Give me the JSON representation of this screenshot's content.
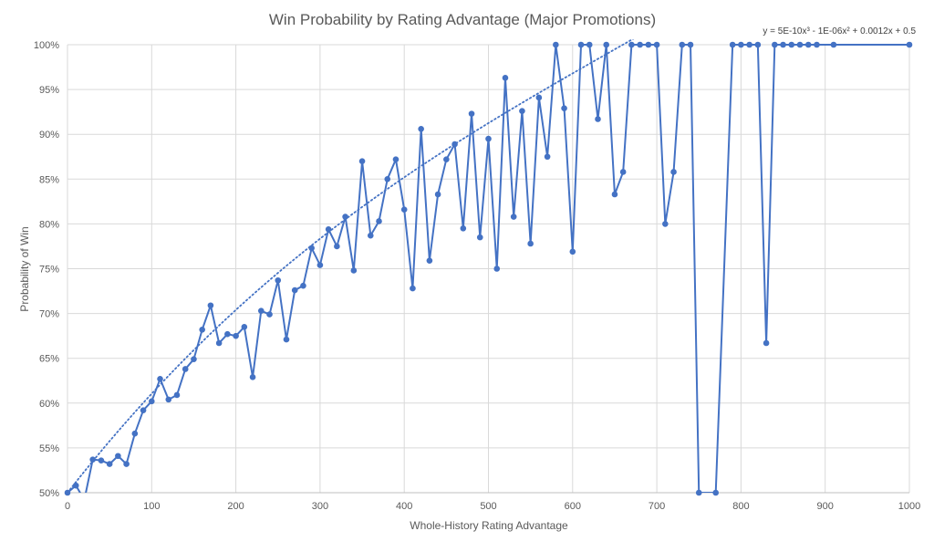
{
  "chart_data": {
    "type": "line",
    "title": "Win Probability by Rating Advantage (Major Promotions)",
    "xlabel": "Whole-History Rating Advantage",
    "ylabel": "Probability of Win",
    "xlim": [
      0,
      1000
    ],
    "ylim": [
      0.5,
      1.0
    ],
    "x_ticks": [
      0,
      100,
      200,
      300,
      400,
      500,
      600,
      700,
      800,
      900,
      1000
    ],
    "x_tick_labels": [
      "0",
      "100",
      "200",
      "300",
      "400",
      "500",
      "600",
      "700",
      "800",
      "900",
      "1000"
    ],
    "y_ticks": [
      0.5,
      0.55,
      0.6,
      0.65,
      0.7,
      0.75,
      0.8,
      0.85,
      0.9,
      0.95,
      1.0
    ],
    "y_tick_labels": [
      "50%",
      "55%",
      "60%",
      "65%",
      "70%",
      "75%",
      "80%",
      "85%",
      "90%",
      "95%",
      "100%"
    ],
    "grid": true,
    "colors": {
      "series": "#4472C4",
      "grid": "#d9d9d9",
      "text": "#595959"
    },
    "annotation": "y = 5E-10x³ - 1E-06x² + 0.0012x + 0.5",
    "series": [
      {
        "x": [
          0,
          10,
          20,
          30,
          40,
          50,
          60,
          70,
          80,
          90,
          100,
          110,
          120,
          130,
          140,
          150,
          160,
          170,
          180,
          190,
          200,
          210,
          220,
          230,
          240,
          250,
          260,
          270,
          280,
          290,
          300,
          310,
          320,
          330,
          340,
          350,
          360,
          370,
          380,
          390,
          400,
          410,
          420,
          430,
          440,
          450,
          460,
          470,
          480,
          490,
          500,
          510,
          520,
          530,
          540,
          550,
          560,
          570,
          580,
          590,
          600,
          610,
          620,
          630,
          640,
          650,
          660,
          670,
          680,
          690,
          700,
          710,
          720,
          730,
          740,
          750,
          770,
          790,
          800,
          810,
          820,
          830,
          840,
          850,
          860,
          870,
          880,
          890,
          910,
          1000
        ],
        "values": [
          0.5,
          0.508,
          0.492,
          0.537,
          0.536,
          0.532,
          0.541,
          0.532,
          0.566,
          0.592,
          0.602,
          0.627,
          0.604,
          0.609,
          0.638,
          0.649,
          0.682,
          0.709,
          0.667,
          0.677,
          0.675,
          0.685,
          0.629,
          0.703,
          0.699,
          0.737,
          0.671,
          0.726,
          0.731,
          0.773,
          0.754,
          0.794,
          0.775,
          0.808,
          0.748,
          0.87,
          0.787,
          0.803,
          0.85,
          0.872,
          0.816,
          0.728,
          0.906,
          0.759,
          0.833,
          0.872,
          0.889,
          0.795,
          0.923,
          0.785,
          0.895,
          0.75,
          0.963,
          0.808,
          0.926,
          0.778,
          0.941,
          0.875,
          1.0,
          0.929,
          0.769,
          1.0,
          1.0,
          0.917,
          1.0,
          0.833,
          0.858,
          1.0,
          1.0,
          1.0,
          1.0,
          0.8,
          0.858,
          1.0,
          1.0,
          0.5,
          0.5,
          1.0,
          1.0,
          1.0,
          1.0,
          0.667,
          1.0,
          1.0,
          1.0,
          1.0,
          1.0,
          1.0,
          1.0,
          1.0
        ]
      }
    ],
    "trendline": {
      "style": "dotted",
      "coefficients": [
        0.5,
        0.0012,
        -1e-06,
        5e-10
      ]
    }
  }
}
